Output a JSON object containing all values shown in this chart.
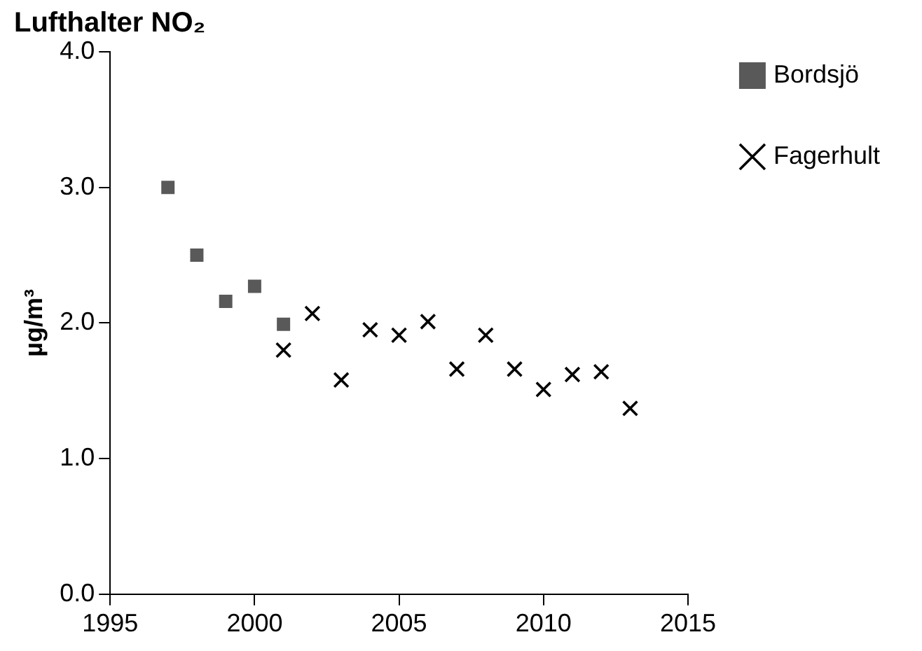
{
  "chart_data": {
    "type": "scatter",
    "title": "Lufthalter NO₂",
    "ylabel": "µg/m³",
    "xlim": [
      1995,
      2015
    ],
    "xticks": [
      1995,
      2000,
      2005,
      2010,
      2015
    ],
    "ylim": [
      0,
      4
    ],
    "yticks": [
      {
        "value": 0,
        "label": "0.0"
      },
      {
        "value": 1,
        "label": "1.0"
      },
      {
        "value": 2,
        "label": "2.0"
      },
      {
        "value": 3,
        "label": "3.0"
      },
      {
        "value": 4,
        "label": "4.0"
      }
    ],
    "grid": false,
    "legend": "top right",
    "series": [
      {
        "name": "Bordsjö",
        "color": "#595959",
        "marker": "square",
        "x": [
          1997,
          1998,
          1999,
          2000,
          2001
        ],
        "values": [
          3.0,
          2.5,
          2.16,
          2.27,
          1.99
        ]
      },
      {
        "name": "Fagerhult",
        "color": "#000000",
        "marker": "cross",
        "x": [
          2001,
          2002,
          2003,
          2004,
          2005,
          2006,
          2007,
          2008,
          2009,
          2010,
          2011,
          2012,
          2013
        ],
        "values": [
          1.8,
          2.07,
          1.58,
          1.95,
          1.91,
          2.01,
          1.66,
          1.91,
          1.66,
          1.51,
          1.62,
          1.64,
          1.37
        ]
      }
    ]
  }
}
